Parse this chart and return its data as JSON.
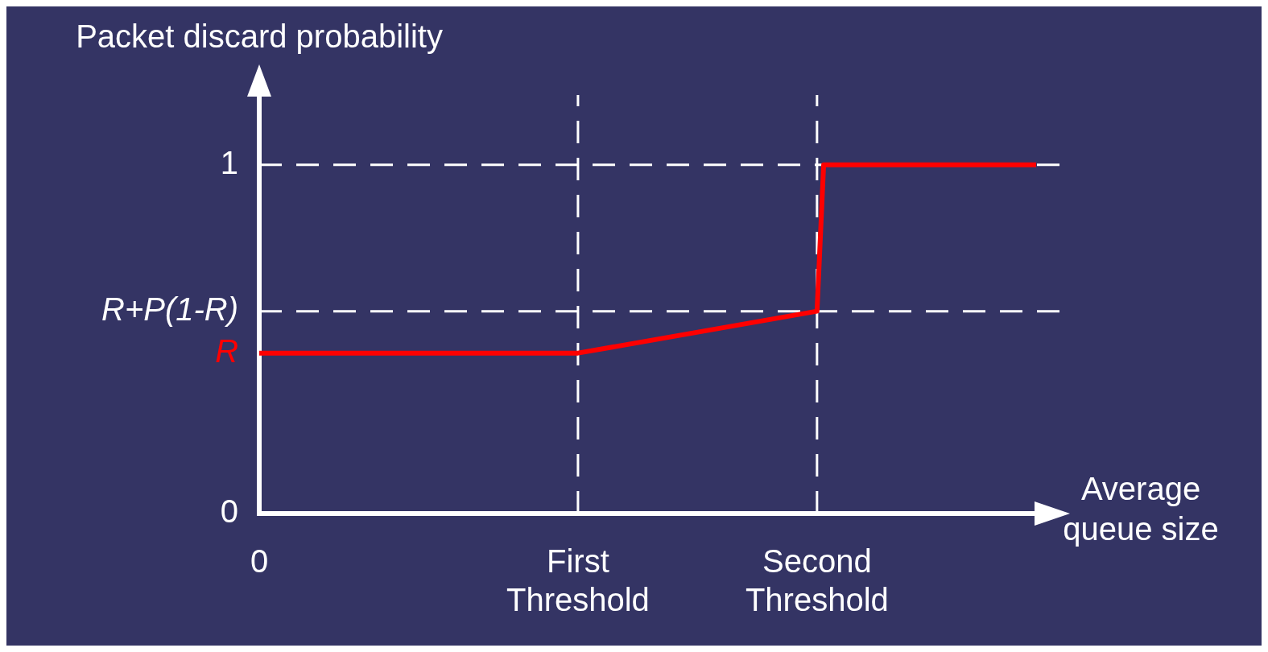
{
  "chart_data": {
    "type": "line",
    "xlabel": "Average queue size",
    "ylabel": "Packet discard probability",
    "categories": [
      "0",
      null,
      null,
      null,
      null,
      null,
      null,
      null,
      null,
      null,
      null,
      null,
      null,
      null,
      null,
      null,
      null,
      null,
      null,
      null,
      null,
      null,
      null,
      null,
      null,
      null,
      null,
      null,
      null,
      null,
      null,
      null,
      null,
      null,
      null,
      null,
      null,
      null,
      null,
      null,
      null,
      null,
      null,
      null,
      null,
      null,
      null,
      null,
      "First Threshold",
      null,
      null,
      null,
      null,
      null,
      null,
      null,
      null,
      null,
      null,
      null,
      null,
      null,
      null,
      null,
      null,
      null,
      null,
      null,
      null,
      null,
      null,
      null,
      null,
      null,
      null,
      null,
      null,
      null,
      null,
      null,
      null,
      null,
      null,
      null,
      "Second Threshold",
      null,
      null,
      null,
      null,
      null,
      null,
      null,
      null,
      null,
      null,
      null,
      null,
      null,
      null,
      null,
      null,
      null,
      null,
      null,
      null,
      null,
      null,
      null,
      null,
      null,
      null,
      null,
      null,
      null,
      null,
      null,
      null,
      null
    ],
    "ylim": [
      0,
      1.2
    ],
    "yticks": [
      0,
      {
        "value": 0.46,
        "label": "R"
      },
      {
        "value": 0.58,
        "label": "R+P(1-R)"
      },
      1
    ],
    "grid": false,
    "legend": false,
    "marker": "none",
    "line_style": "solid",
    "series": [
      {
        "color": "#ff0000",
        "values": [
          0.46,
          null,
          null,
          null,
          null,
          null,
          null,
          null,
          null,
          null,
          null,
          null,
          null,
          null,
          null,
          null,
          null,
          null,
          null,
          null,
          null,
          null,
          null,
          null,
          null,
          null,
          null,
          null,
          null,
          null,
          null,
          null,
          null,
          null,
          null,
          null,
          null,
          null,
          null,
          null,
          null,
          null,
          null,
          null,
          null,
          null,
          null,
          null,
          0.46,
          null,
          null,
          null,
          null,
          null,
          null,
          null,
          null,
          null,
          null,
          null,
          null,
          null,
          null,
          null,
          null,
          null,
          null,
          null,
          null,
          null,
          null,
          null,
          null,
          null,
          null,
          null,
          null,
          null,
          null,
          null,
          null,
          null,
          null,
          null,
          0.58,
          1,
          null,
          null,
          null,
          null,
          null,
          null,
          null,
          null,
          null,
          null,
          null,
          null,
          null,
          null,
          null,
          null,
          null,
          null,
          null,
          null,
          null,
          null,
          null,
          null,
          null,
          null,
          null,
          null,
          null,
          null,
          null,
          1
        ]
      }
    ],
    "ref_lines": [
      {
        "axis": "y",
        "value": 1,
        "color": "#ffffff",
        "line_style": "dashed"
      },
      {
        "axis": "y",
        "value": 0.58,
        "color": "#ffffff",
        "line_style": "dashed"
      },
      {
        "axis": "x",
        "value": "First Threshold",
        "color": "#ffffff",
        "line_style": "dashed"
      },
      {
        "axis": "x",
        "value": "Second Threshold",
        "color": "#ffffff",
        "line_style": "dashed"
      }
    ]
  }
}
